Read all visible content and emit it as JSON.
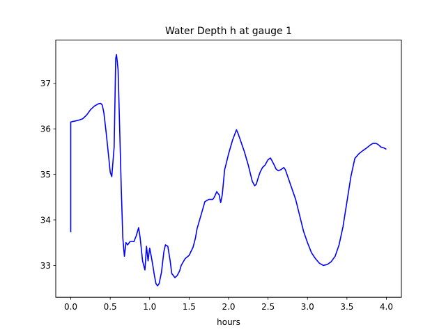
{
  "chart_data": {
    "type": "line",
    "title": "Water Depth h at gauge 1",
    "xlabel": "hours",
    "ylabel": "",
    "xlim": [
      -0.19,
      4.19
    ],
    "ylim": [
      32.3,
      37.95
    ],
    "xticks": [
      0.0,
      0.5,
      1.0,
      1.5,
      2.0,
      2.5,
      3.0,
      3.5,
      4.0
    ],
    "xtick_labels": [
      "0.0",
      "0.5",
      "1.0",
      "1.5",
      "2.0",
      "2.5",
      "3.0",
      "3.5",
      "4.0"
    ],
    "yticks": [
      33,
      34,
      35,
      36,
      37
    ],
    "ytick_labels": [
      "33",
      "34",
      "35",
      "36",
      "37"
    ],
    "grid": false,
    "series": [
      {
        "color": "#0000ff",
        "x": [
          0.0,
          0.0,
          0.02,
          0.05,
          0.1,
          0.15,
          0.2,
          0.25,
          0.3,
          0.35,
          0.38,
          0.4,
          0.42,
          0.45,
          0.48,
          0.5,
          0.52,
          0.55,
          0.57,
          0.58,
          0.6,
          0.62,
          0.64,
          0.66,
          0.68,
          0.7,
          0.72,
          0.75,
          0.78,
          0.8,
          0.83,
          0.86,
          0.88,
          0.91,
          0.94,
          0.96,
          0.98,
          1.0,
          1.02,
          1.04,
          1.06,
          1.08,
          1.1,
          1.12,
          1.15,
          1.18,
          1.2,
          1.23,
          1.26,
          1.28,
          1.3,
          1.32,
          1.35,
          1.38,
          1.4,
          1.45,
          1.5,
          1.55,
          1.58,
          1.6,
          1.65,
          1.7,
          1.75,
          1.8,
          1.82,
          1.85,
          1.88,
          1.9,
          1.92,
          1.95,
          2.0,
          2.05,
          2.1,
          2.12,
          2.15,
          2.2,
          2.25,
          2.3,
          2.33,
          2.35,
          2.38,
          2.4,
          2.43,
          2.46,
          2.5,
          2.53,
          2.55,
          2.58,
          2.6,
          2.63,
          2.66,
          2.7,
          2.72,
          2.75,
          2.8,
          2.85,
          2.9,
          2.95,
          3.0,
          3.05,
          3.1,
          3.15,
          3.2,
          3.25,
          3.3,
          3.35,
          3.4,
          3.45,
          3.5,
          3.55,
          3.6,
          3.65,
          3.7,
          3.75,
          3.8,
          3.83,
          3.87,
          3.9,
          3.93,
          3.97,
          4.0
        ],
        "y": [
          33.73,
          36.15,
          36.16,
          36.17,
          36.19,
          36.22,
          36.3,
          36.42,
          36.5,
          36.55,
          36.56,
          36.52,
          36.35,
          35.9,
          35.4,
          35.05,
          34.95,
          35.6,
          37.55,
          37.63,
          37.3,
          36.0,
          34.7,
          33.6,
          33.2,
          33.5,
          33.45,
          33.52,
          33.53,
          33.52,
          33.65,
          33.83,
          33.6,
          33.1,
          32.9,
          33.42,
          33.1,
          33.38,
          33.2,
          33.0,
          32.78,
          32.6,
          32.55,
          32.6,
          32.85,
          33.3,
          33.45,
          33.42,
          33.1,
          32.82,
          32.78,
          32.73,
          32.78,
          32.88,
          33.0,
          33.15,
          33.22,
          33.4,
          33.6,
          33.8,
          34.1,
          34.4,
          34.45,
          34.45,
          34.5,
          34.62,
          34.55,
          34.38,
          34.55,
          35.1,
          35.45,
          35.75,
          35.98,
          35.9,
          35.75,
          35.5,
          35.2,
          34.85,
          34.75,
          34.78,
          34.95,
          35.05,
          35.15,
          35.2,
          35.32,
          35.36,
          35.3,
          35.2,
          35.12,
          35.08,
          35.1,
          35.15,
          35.1,
          34.95,
          34.7,
          34.45,
          34.1,
          33.75,
          33.5,
          33.28,
          33.15,
          33.05,
          33.0,
          33.02,
          33.08,
          33.2,
          33.45,
          33.85,
          34.4,
          34.95,
          35.35,
          35.45,
          35.52,
          35.58,
          35.65,
          35.68,
          35.68,
          35.65,
          35.6,
          35.58,
          35.55
        ]
      }
    ]
  }
}
